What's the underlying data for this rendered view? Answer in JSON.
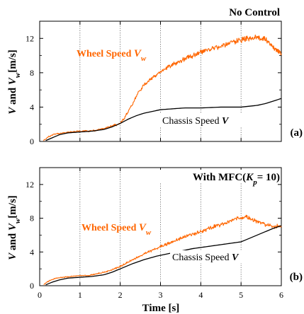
{
  "chart_data": [
    {
      "type": "line",
      "title": "No Control",
      "panel_label": "(a)",
      "ylabel": "V and Vw[m/s]",
      "ylabel_parts": {
        "v": "V",
        "and": " and ",
        "vw": "V",
        "vw_sub": "w",
        "unit": "[m/s]"
      },
      "xlim": [
        0,
        6
      ],
      "ylim": [
        0,
        14
      ],
      "yticks": [
        0,
        4,
        8,
        12
      ],
      "grid": {
        "vertical_dotted": [
          1,
          2,
          3,
          4,
          5
        ]
      },
      "series": [
        {
          "name": "Wheel Speed Vw",
          "label_text": "Wheel Speed ",
          "label_sym": "V",
          "label_sub": "w",
          "color": "#ff6600",
          "noise": 0.35,
          "x": [
            0.1,
            0.2,
            0.3,
            0.4,
            0.6,
            0.8,
            1.0,
            1.2,
            1.4,
            1.6,
            1.8,
            2.0,
            2.1,
            2.2,
            2.3,
            2.4,
            2.5,
            2.6,
            2.8,
            3.0,
            3.2,
            3.4,
            3.6,
            3.8,
            4.0,
            4.2,
            4.4,
            4.6,
            4.8,
            5.0,
            5.2,
            5.4,
            5.6,
            5.8,
            6.0
          ],
          "y": [
            0.1,
            0.5,
            0.7,
            0.9,
            1.0,
            1.1,
            1.2,
            1.2,
            1.3,
            1.5,
            1.8,
            2.1,
            2.7,
            3.5,
            4.3,
            5.3,
            6.0,
            6.6,
            7.4,
            8.1,
            8.7,
            9.2,
            9.6,
            10.0,
            10.4,
            10.7,
            11.0,
            11.3,
            11.6,
            11.8,
            12.0,
            12.1,
            11.9,
            11.0,
            10.3
          ]
        },
        {
          "name": "Chassis Speed V",
          "label_text": "Chassis Speed ",
          "label_sym": "V",
          "label_sub": "",
          "color": "#000000",
          "noise": 0.0,
          "x": [
            0.15,
            0.3,
            0.5,
            0.7,
            1.0,
            1.3,
            1.6,
            1.8,
            2.0,
            2.2,
            2.4,
            2.6,
            2.8,
            3.0,
            3.3,
            3.6,
            4.0,
            4.5,
            5.0,
            5.2,
            5.4,
            5.6,
            5.8,
            6.0
          ],
          "y": [
            0.1,
            0.4,
            0.8,
            1.0,
            1.1,
            1.2,
            1.4,
            1.7,
            2.1,
            2.6,
            3.0,
            3.3,
            3.5,
            3.7,
            3.8,
            3.9,
            3.9,
            4.0,
            4.0,
            4.1,
            4.2,
            4.4,
            4.7,
            5.0
          ]
        }
      ]
    },
    {
      "type": "line",
      "title_parts": {
        "pre": "With MFC(",
        "sym": "K",
        "sub": "p",
        "post": "= 10)"
      },
      "panel_label": "(b)",
      "ylabel": "V and Vw[m/s]",
      "ylabel_parts": {
        "v": "V",
        "and": " and ",
        "vw": "V",
        "vw_sub": "w",
        "unit": "[m/s]"
      },
      "xlabel": "Time [s]",
      "xlim": [
        0,
        6
      ],
      "ylim": [
        0,
        14
      ],
      "xticks": [
        0,
        1,
        2,
        3,
        4,
        5,
        6
      ],
      "yticks": [
        0,
        4,
        8,
        12
      ],
      "grid": {
        "vertical_dotted": [
          1,
          2,
          3,
          4,
          5
        ]
      },
      "series": [
        {
          "name": "Wheel Speed Vw",
          "label_text": "Wheel Speed ",
          "label_sym": "V",
          "label_sub": "w",
          "color": "#ff6600",
          "noise": 0.25,
          "x": [
            0.1,
            0.2,
            0.3,
            0.4,
            0.6,
            0.8,
            1.0,
            1.2,
            1.4,
            1.6,
            1.8,
            2.0,
            2.2,
            2.4,
            2.6,
            2.8,
            3.0,
            3.2,
            3.4,
            3.6,
            3.8,
            4.0,
            4.2,
            4.4,
            4.6,
            4.8,
            5.0,
            5.1,
            5.2,
            5.4,
            5.6,
            5.8,
            6.0
          ],
          "y": [
            0.1,
            0.5,
            0.7,
            0.9,
            1.0,
            1.1,
            1.2,
            1.2,
            1.4,
            1.6,
            1.9,
            2.3,
            2.8,
            3.3,
            3.8,
            4.2,
            4.6,
            5.0,
            5.4,
            5.8,
            6.1,
            6.4,
            6.8,
            7.1,
            7.4,
            7.8,
            8.1,
            8.2,
            8.0,
            7.6,
            7.2,
            7.0,
            7.1
          ]
        },
        {
          "name": "Chassis Speed V",
          "label_text": "Chassis Speed ",
          "label_sym": "V",
          "label_sub": "",
          "color": "#000000",
          "noise": 0.0,
          "x": [
            0.15,
            0.3,
            0.5,
            0.7,
            1.0,
            1.3,
            1.6,
            1.8,
            2.0,
            2.3,
            2.6,
            2.9,
            3.2,
            3.5,
            3.8,
            4.1,
            4.4,
            4.7,
            5.0,
            5.2,
            5.4,
            5.6,
            5.8,
            6.0
          ],
          "y": [
            0.1,
            0.4,
            0.7,
            0.9,
            1.0,
            1.1,
            1.3,
            1.6,
            2.0,
            2.6,
            3.1,
            3.5,
            3.8,
            4.1,
            4.4,
            4.6,
            4.8,
            5.0,
            5.2,
            5.6,
            6.0,
            6.4,
            6.8,
            7.1
          ]
        }
      ]
    }
  ]
}
